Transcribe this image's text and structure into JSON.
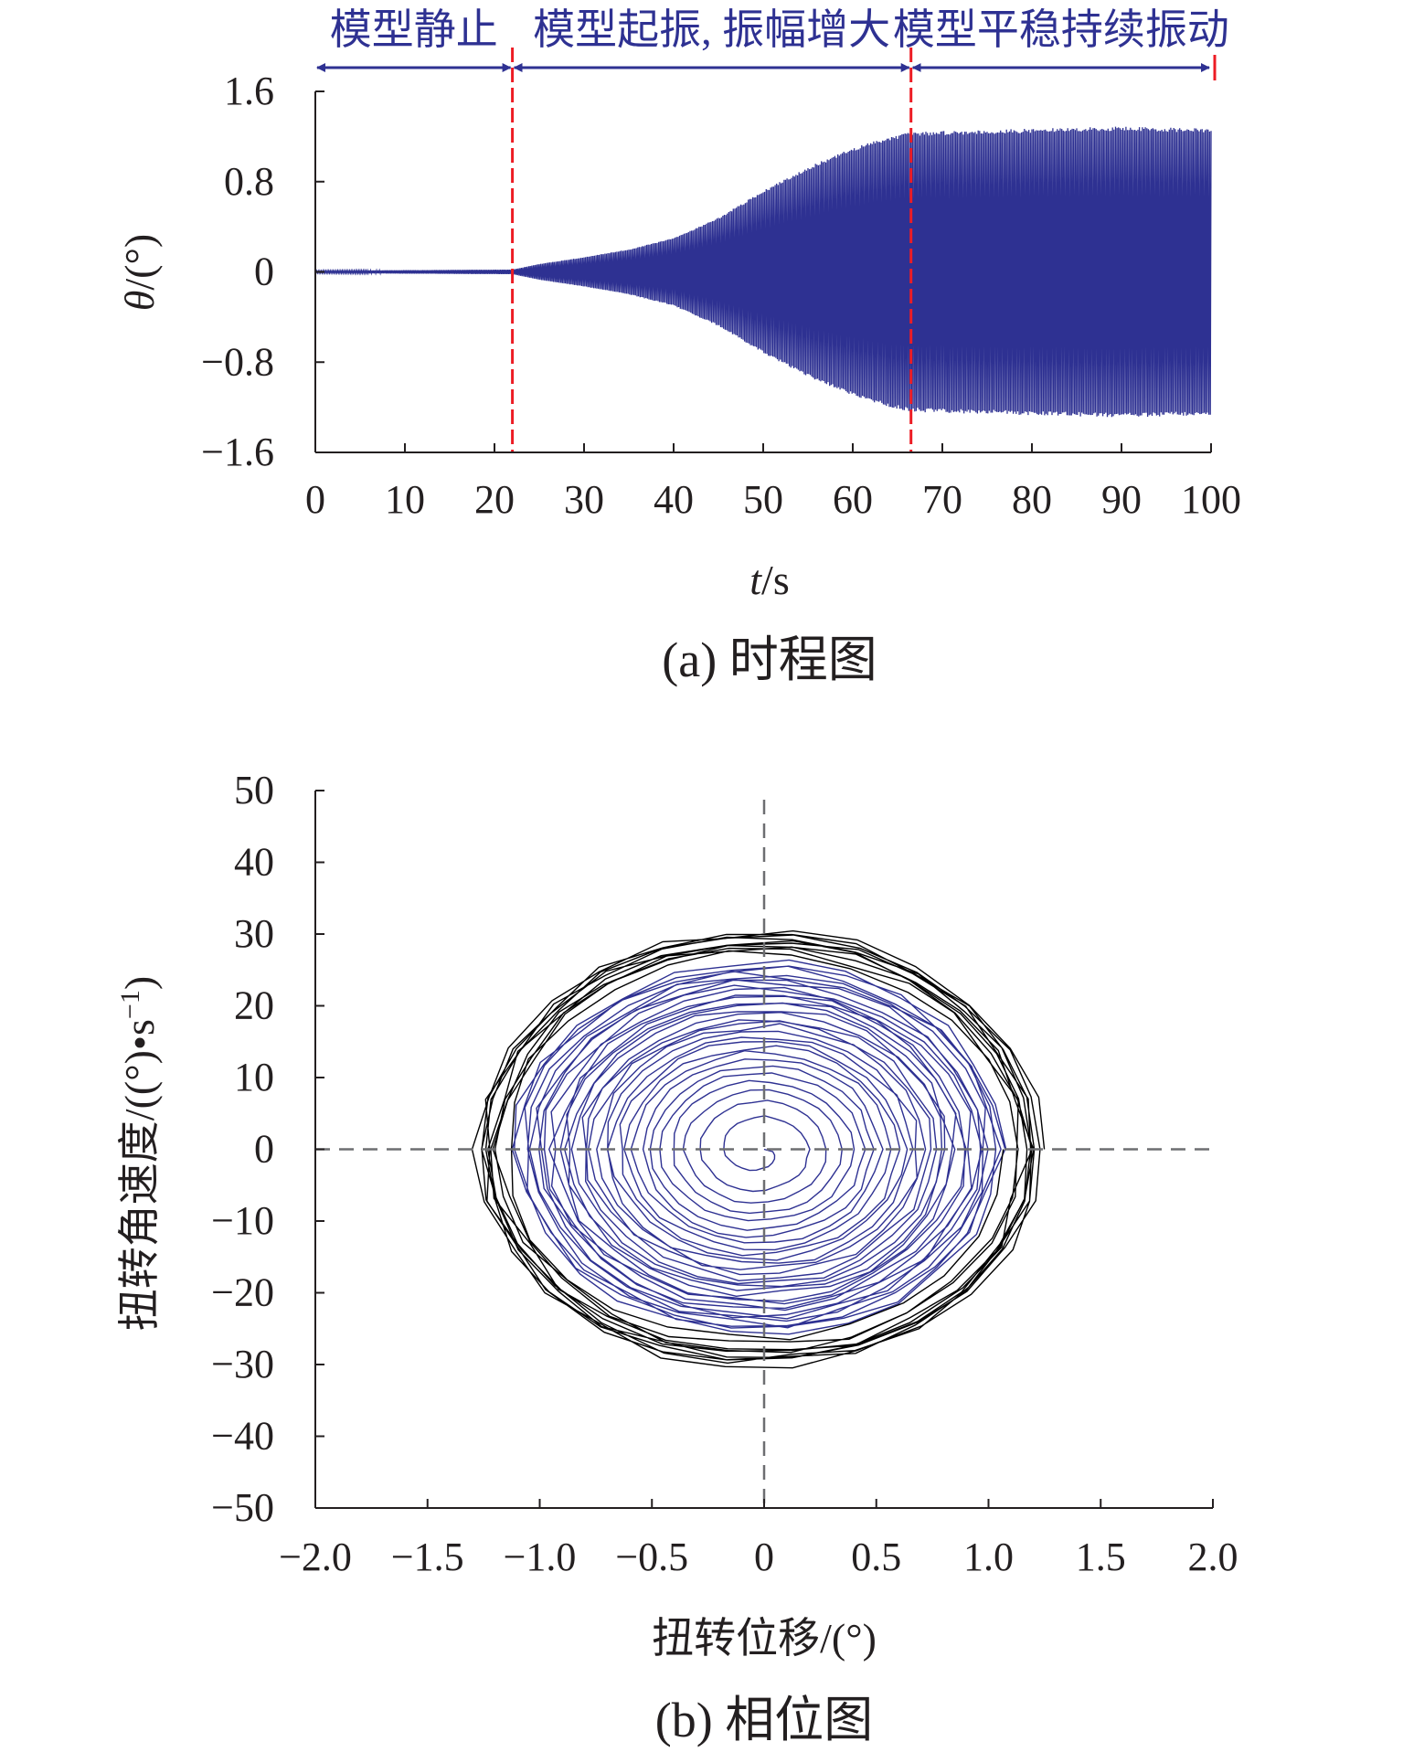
{
  "chart_data": [
    {
      "type": "line",
      "title": "(a) 时程图",
      "xlabel_var": "t",
      "xlabel_unit": "/s",
      "ylabel_var": "θ",
      "ylabel_unit": "/(°)",
      "xlim": [
        0,
        100
      ],
      "ylim": [
        -1.6,
        1.6
      ],
      "x_ticks": [
        0,
        10,
        20,
        30,
        40,
        50,
        60,
        70,
        80,
        90,
        100
      ],
      "x_tick_labels": [
        "0",
        "10",
        "20",
        "30",
        "40",
        "50",
        "60",
        "70",
        "80",
        "90",
        "100"
      ],
      "y_ticks": [
        1.6,
        0.8,
        0,
        -0.8,
        -1.6
      ],
      "y_tick_labels": [
        "1.6",
        "0.8",
        "0",
        "−0.8",
        "−1.6"
      ],
      "grid": false,
      "series_color": "#2e3192",
      "phase_line_color": "#ed1c24",
      "phase_boundaries": [
        22,
        66.5,
        100
      ],
      "phases": [
        {
          "label": "模型静止",
          "from": 0,
          "to": 22
        },
        {
          "label": "模型起振, 振幅增大",
          "from": 22,
          "to": 66.5
        },
        {
          "label": "模型平稳持续振动",
          "from": 66.5,
          "to": 100
        }
      ],
      "amplitude_envelope": {
        "t": [
          0,
          22,
          25,
          30,
          35,
          40,
          45,
          50,
          55,
          60,
          64,
          66.5,
          70,
          80,
          90,
          100
        ],
        "amp": [
          0.01,
          0.02,
          0.07,
          0.13,
          0.2,
          0.3,
          0.48,
          0.72,
          0.93,
          1.1,
          1.2,
          1.24,
          1.25,
          1.27,
          1.29,
          1.27
        ]
      }
    },
    {
      "type": "line",
      "title": "(b) 相位图",
      "xlabel": "扭转位移/(°)",
      "ylabel": "扭转角速度/((°)•s",
      "ylabel_sup": "−1",
      "ylabel_close": ")",
      "xlim": [
        -2.0,
        2.0
      ],
      "ylim": [
        -50,
        50
      ],
      "x_ticks": [
        -2.0,
        -1.5,
        -1.0,
        -0.5,
        0,
        0.5,
        1.0,
        1.5,
        2.0
      ],
      "x_tick_labels": [
        "−2.0",
        "−1.5",
        "−1.0",
        "−0.5",
        "0",
        "0.5",
        "1.0",
        "1.5",
        "2.0"
      ],
      "y_ticks": [
        50,
        40,
        30,
        20,
        10,
        0,
        -10,
        -20,
        -30,
        -40,
        -50
      ],
      "y_tick_labels": [
        "50",
        "40",
        "30",
        "20",
        "10",
        "0",
        "−10",
        "−20",
        "−30",
        "−40",
        "−50"
      ],
      "grid": false,
      "zero_lines": "dashed",
      "series": [
        {
          "color": "#2e3192",
          "displacement_amplitude_range": [
            0.02,
            1.1
          ],
          "velocity_amplitude_range": [
            0.5,
            26
          ]
        },
        {
          "color": "#000000",
          "displacement_amplitude_range": [
            1.1,
            1.25
          ],
          "velocity_amplitude_range": [
            26,
            30.5
          ]
        }
      ]
    }
  ]
}
